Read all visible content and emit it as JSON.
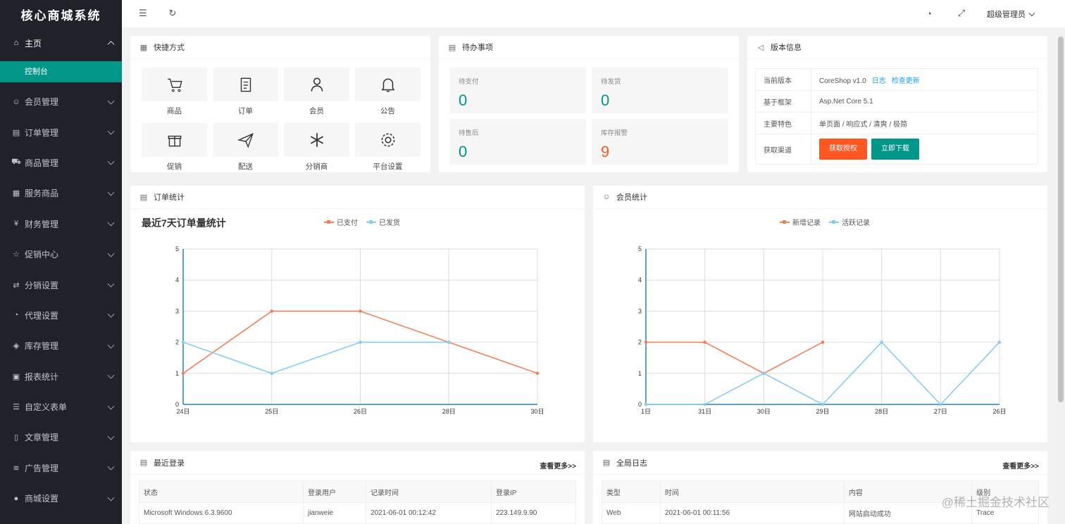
{
  "app": {
    "title": "核心商城系统"
  },
  "sidebar": {
    "home": {
      "label": "主页",
      "icon": "home-icon",
      "sub": "控制台"
    },
    "items": [
      {
        "label": "会员管理",
        "icon": "user-icon"
      },
      {
        "label": "订单管理",
        "icon": "calendar-icon"
      },
      {
        "label": "商品管理",
        "icon": "cart-icon"
      },
      {
        "label": "服务商品",
        "icon": "store-icon"
      },
      {
        "label": "财务管理",
        "icon": "yen-icon"
      },
      {
        "label": "促销中心",
        "icon": "star-icon"
      },
      {
        "label": "分销设置",
        "icon": "share-icon"
      },
      {
        "label": "代理设置",
        "icon": "dashboard-icon"
      },
      {
        "label": "库存管理",
        "icon": "layers-icon"
      },
      {
        "label": "报表统计",
        "icon": "report-icon"
      },
      {
        "label": "自定义表单",
        "icon": "form-icon"
      },
      {
        "label": "文章管理",
        "icon": "file-icon"
      },
      {
        "label": "广告管理",
        "icon": "rss-icon"
      },
      {
        "label": "商城设置",
        "icon": "globe-icon"
      }
    ]
  },
  "header": {
    "user": "超级管理员"
  },
  "shortcuts": {
    "title": "快捷方式",
    "items": [
      {
        "label": "商品",
        "icon": "cart-icon"
      },
      {
        "label": "订单",
        "icon": "clipboard-icon"
      },
      {
        "label": "会员",
        "icon": "user-icon"
      },
      {
        "label": "公告",
        "icon": "bell-icon"
      },
      {
        "label": "促销",
        "icon": "gift-icon"
      },
      {
        "label": "配送",
        "icon": "paper-plane-icon"
      },
      {
        "label": "分销商",
        "icon": "snowflake-icon"
      },
      {
        "label": "平台设置",
        "icon": "gear-icon"
      }
    ]
  },
  "todo": {
    "title": "待办事项",
    "items": [
      {
        "label": "待支付",
        "value": "0"
      },
      {
        "label": "待发货",
        "value": "0"
      },
      {
        "label": "待售后",
        "value": "0"
      },
      {
        "label": "库存报警",
        "value": "9"
      }
    ]
  },
  "version": {
    "title": "版本信息",
    "rows": {
      "current_label": "当前版本",
      "current_value": "CoreShop v1.0",
      "log_link": "日志",
      "update_link": "检查更新",
      "framework_label": "基于框架",
      "framework_value": "Asp.Net Core 5.1",
      "features_label": "主要特色",
      "features_value": "单页面 / 响应式 / 清爽 / 极简",
      "channel_label": "获取渠道",
      "auth_button": "获取授权",
      "download_button": "立即下载"
    }
  },
  "order_stats": {
    "title": "订单统计",
    "chart_title": "最近7天订单量统计"
  },
  "member_stats": {
    "title": "会员统计"
  },
  "chart_data": [
    {
      "type": "line",
      "title": "最近7天订单量统计",
      "categories": [
        "24日",
        "25日",
        "26日",
        "28日",
        "30日"
      ],
      "series": [
        {
          "name": "已支付",
          "color": "#f0805a",
          "values": [
            1,
            3,
            3,
            2,
            1
          ]
        },
        {
          "name": "已发货",
          "color": "#86cdf0",
          "values": [
            2,
            1,
            2,
            2,
            null
          ]
        }
      ],
      "ylim": [
        0,
        5
      ],
      "yticks": [
        "0",
        "1",
        "2",
        "3",
        "4",
        "5"
      ],
      "grid": true,
      "legend": "top-center"
    },
    {
      "type": "line",
      "title": "",
      "categories": [
        "1日",
        "31日",
        "30日",
        "29日",
        "28日",
        "27日",
        "26日"
      ],
      "series": [
        {
          "name": "新增记录",
          "color": "#f0805a",
          "values": [
            2,
            2,
            1,
            2,
            null,
            null,
            null
          ]
        },
        {
          "name": "活跃记录",
          "color": "#86cdf0",
          "values": [
            0,
            0,
            1,
            0,
            2,
            0,
            2
          ]
        }
      ],
      "ylim": [
        0,
        5
      ],
      "yticks": [
        "0",
        "1",
        "2",
        "3",
        "4",
        "5"
      ],
      "grid": true,
      "legend": "top-center"
    }
  ],
  "recent_login": {
    "title": "最近登录",
    "more": "查看更多>>",
    "columns": [
      "状态",
      "登录用户",
      "记录时间",
      "登录IP"
    ],
    "rows": [
      [
        "Microsoft Windows 6.3.9600",
        "jianweie",
        "2021-06-01 00:12:42",
        "223.149.9.90"
      ]
    ]
  },
  "global_log": {
    "title": "全局日志",
    "more": "查看更多>>",
    "columns": [
      "类型",
      "时间",
      "内容",
      "级别"
    ],
    "rows": [
      [
        "Web",
        "2021-06-01 00:11:56",
        "网站启动成功",
        "Trace"
      ]
    ]
  },
  "watermark": "@稀土掘金技术社区"
}
